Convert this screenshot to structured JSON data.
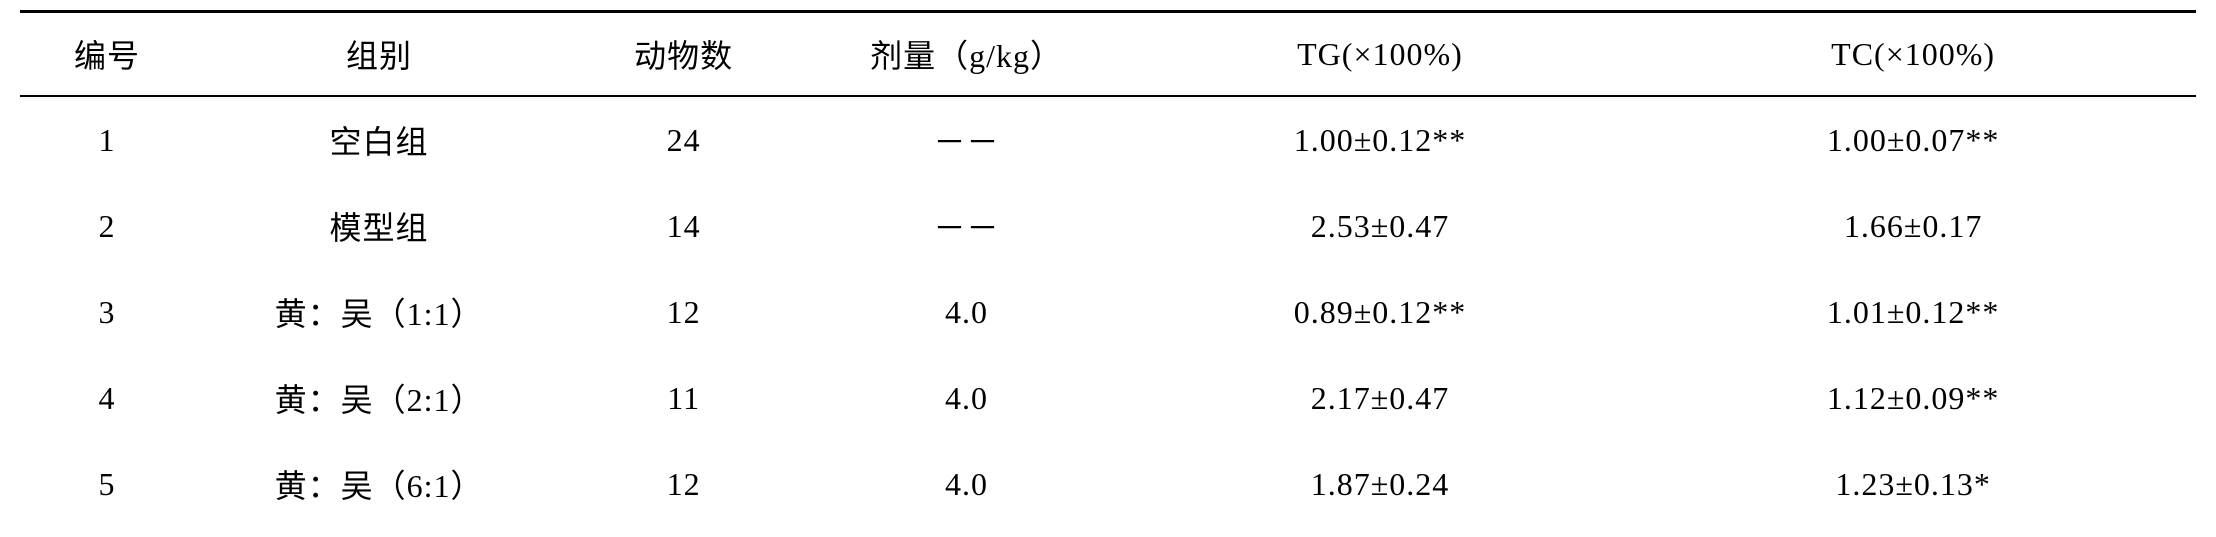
{
  "table": {
    "headers": {
      "num": "编号",
      "group": "组别",
      "animals": "动物数",
      "dose": "剂量（g/kg）",
      "tg": "TG(×100%)",
      "tc": "TC(×100%)"
    },
    "rows": [
      {
        "num": "1",
        "group": "空白组",
        "animals": "24",
        "dose": "－－",
        "tg": "1.00±0.12**",
        "tc": "1.00±0.07**"
      },
      {
        "num": "2",
        "group": "模型组",
        "animals": "14",
        "dose": "－－",
        "tg": "2.53±0.47",
        "tc": "1.66±0.17"
      },
      {
        "num": "3",
        "group": "黄：吴（1:1）",
        "animals": "12",
        "dose": "4.0",
        "tg": "0.89±0.12**",
        "tc": "1.01±0.12**"
      },
      {
        "num": "4",
        "group": "黄：吴（2:1）",
        "animals": "11",
        "dose": "4.0",
        "tg": "2.17±0.47",
        "tc": "1.12±0.09**"
      },
      {
        "num": "5",
        "group": "黄：吴（6:1）",
        "animals": "12",
        "dose": "4.0",
        "tg": "1.87±0.24",
        "tc": "1.23±0.13*"
      }
    ],
    "styling": {
      "border_top_width": 3,
      "border_header_width": 2,
      "border_color": "#000000",
      "font_size": 32,
      "text_color": "#000000",
      "background_color": "#ffffff",
      "font_family": "SimSun",
      "cell_padding_vertical": 20,
      "header_padding_vertical": 18,
      "column_widths_percent": [
        8,
        17,
        11,
        15,
        23,
        26
      ]
    }
  }
}
